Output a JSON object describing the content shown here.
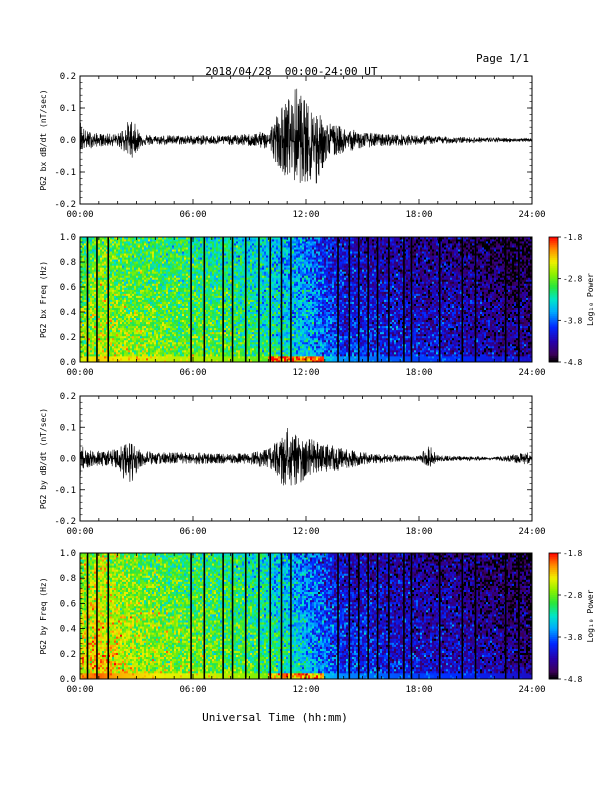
{
  "header": {
    "date": "2018/04/28",
    "time_range": "00:00-24:00 UT",
    "page": "Page 1/1"
  },
  "xlabel": "Universal Time (hh:mm)",
  "x_ticks": [
    "00:00",
    "06:00",
    "12:00",
    "18:00",
    "24:00"
  ],
  "colorbar": {
    "label": "Log₁₀ Power",
    "ticks": [
      "-1.8",
      "-2.8",
      "-3.8",
      "-4.8"
    ],
    "range": [
      -4.8,
      -1.8
    ]
  },
  "chart_data": [
    {
      "type": "line",
      "ylabel": "PG2 bx dB/dt (nT/sec)",
      "xlim": [
        0,
        24
      ],
      "ylim": [
        -0.2,
        0.2
      ],
      "y_ticks": [
        "0.2",
        "0.1",
        "0.0",
        "-0.1",
        "-0.2"
      ],
      "envelope": {
        "hours": [
          0,
          0.3,
          1,
          2,
          2.7,
          3.3,
          4,
          6,
          8,
          9,
          10,
          10.5,
          11,
          11.5,
          12,
          12.5,
          13,
          14,
          15,
          16,
          18,
          20,
          22,
          23.5,
          24
        ],
        "upper": [
          0.07,
          0.03,
          0.02,
          0.02,
          0.07,
          0.02,
          0.015,
          0.015,
          0.015,
          0.02,
          0.03,
          0.09,
          0.13,
          0.17,
          0.12,
          0.1,
          0.06,
          0.04,
          0.025,
          0.02,
          0.015,
          0.01,
          0.008,
          0.005,
          0.005
        ],
        "lower": [
          -0.04,
          -0.03,
          -0.02,
          -0.02,
          -0.06,
          -0.02,
          -0.015,
          -0.015,
          -0.015,
          -0.02,
          -0.03,
          -0.08,
          -0.12,
          -0.14,
          -0.13,
          -0.17,
          -0.07,
          -0.04,
          -0.025,
          -0.02,
          -0.015,
          -0.01,
          -0.008,
          -0.005,
          -0.005
        ]
      }
    },
    {
      "type": "heatmap",
      "ylabel": "PG2 bx Freq (Hz)",
      "xlim": [
        0,
        24
      ],
      "ylim": [
        0,
        1
      ],
      "y_ticks": [
        "1.0",
        "0.8",
        "0.6",
        "0.4",
        "0.2",
        "0.0"
      ],
      "value_label": "Log₁₀ Power",
      "power_by_hour": {
        "hours": [
          0,
          1,
          2,
          4,
          6,
          8,
          10,
          12,
          13,
          14,
          16,
          18,
          20,
          22,
          24
        ],
        "log_power": [
          -2.9,
          -2.7,
          -2.8,
          -2.9,
          -3.0,
          -3.1,
          -3.3,
          -3.6,
          -3.9,
          -4.1,
          -4.2,
          -4.3,
          -4.35,
          -4.5,
          -4.6
        ]
      },
      "low_freq_enhancement": {
        "freq_below": 0.05,
        "hours": [
          10,
          13
        ],
        "log_power": -2.0
      },
      "gap_hours": [
        0.4,
        0.9,
        1.5,
        5.9,
        6.6,
        7.6,
        8.1,
        8.8,
        9.5,
        10.1,
        10.7,
        11.2,
        13.7,
        14.3,
        14.8,
        15.3,
        15.8,
        16.4,
        17.2,
        17.6,
        19.1,
        20.3,
        21.0,
        22.6,
        23.3
      ]
    },
    {
      "type": "line",
      "ylabel": "PG2 by dB/dt (nT/sec)",
      "xlim": [
        0,
        24
      ],
      "ylim": [
        -0.2,
        0.2
      ],
      "y_ticks": [
        "0.2",
        "0.1",
        "0.0",
        "-0.1",
        "-0.2"
      ],
      "envelope": {
        "hours": [
          0,
          0.3,
          1,
          2,
          2.6,
          3.2,
          4,
          6,
          8,
          9,
          10,
          10.5,
          11,
          11.5,
          12,
          12.5,
          13,
          14,
          15,
          16,
          17,
          18,
          18.6,
          19,
          20,
          22,
          23.8,
          24
        ],
        "upper": [
          0.05,
          0.03,
          0.025,
          0.03,
          0.06,
          0.03,
          0.02,
          0.02,
          0.015,
          0.02,
          0.03,
          0.06,
          0.1,
          0.09,
          0.07,
          0.06,
          0.05,
          0.035,
          0.02,
          0.015,
          0.01,
          0.008,
          0.05,
          0.01,
          0.008,
          0.005,
          0.02,
          0.005
        ],
        "lower": [
          -0.06,
          -0.03,
          -0.025,
          -0.03,
          -0.1,
          -0.03,
          -0.02,
          -0.02,
          -0.015,
          -0.02,
          -0.03,
          -0.06,
          -0.12,
          -0.09,
          -0.07,
          -0.05,
          -0.05,
          -0.035,
          -0.02,
          -0.015,
          -0.01,
          -0.008,
          -0.03,
          -0.01,
          -0.008,
          -0.005,
          -0.02,
          -0.005
        ]
      }
    },
    {
      "type": "heatmap",
      "ylabel": "PG2 by Freq (Hz)",
      "xlim": [
        0,
        24
      ],
      "ylim": [
        0,
        1
      ],
      "y_ticks": [
        "1.0",
        "0.8",
        "0.6",
        "0.4",
        "0.2",
        "0.0"
      ],
      "value_label": "Log₁₀ Power",
      "power_by_hour": {
        "hours": [
          0,
          1,
          2,
          4,
          6,
          8,
          10,
          12,
          13,
          14,
          16,
          18,
          20,
          22,
          24
        ],
        "log_power": [
          -2.6,
          -2.4,
          -2.6,
          -2.8,
          -2.9,
          -3.0,
          -3.2,
          -3.6,
          -3.9,
          -4.1,
          -4.2,
          -4.3,
          -4.35,
          -4.5,
          -4.6
        ]
      },
      "low_freq_enhancement": {
        "freq_below": 0.05,
        "hours": [
          10,
          13
        ],
        "log_power": -2.2
      },
      "gap_hours": [
        0.4,
        0.9,
        1.5,
        5.9,
        6.6,
        7.6,
        8.1,
        8.8,
        9.5,
        10.1,
        10.7,
        11.2,
        13.7,
        14.3,
        14.8,
        15.3,
        15.8,
        16.4,
        17.2,
        17.6,
        19.1,
        20.3,
        21.0,
        22.6,
        23.3
      ]
    }
  ]
}
